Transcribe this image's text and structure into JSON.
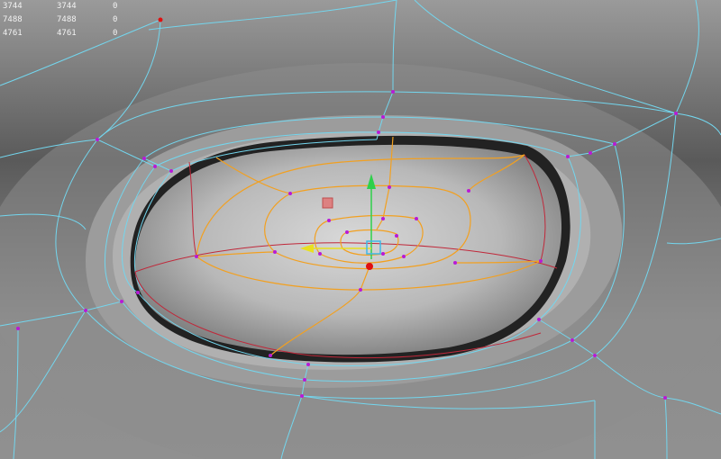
{
  "viewport": {
    "colors": {
      "wireframe": "#73d6ee",
      "selected_edge_loop": "#f2a020",
      "inner_edge_loop": "#c0283a",
      "vertex": "#b81ad6",
      "selected_vertex": "#e01010"
    },
    "manipulator": {
      "type": "move-tool",
      "axes": [
        "y-arrow-green",
        "x-arrow-yellow",
        "center-handle-cyan",
        "pivot-red"
      ]
    }
  },
  "poly_count_hud": {
    "rows": [
      {
        "value_a": "3744",
        "value_b": "3744",
        "value_c": "0"
      },
      {
        "value_a": "7488",
        "value_b": "7488",
        "value_c": "0"
      },
      {
        "value_a": "4761",
        "value_b": "4761",
        "value_c": "0"
      }
    ]
  }
}
